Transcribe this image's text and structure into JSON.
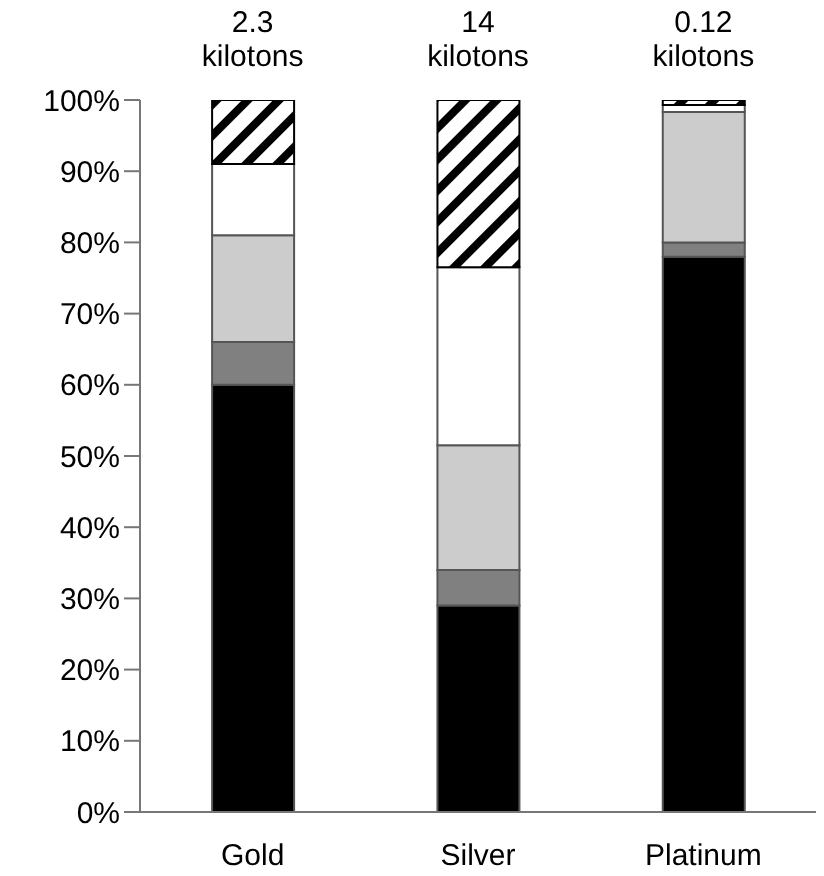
{
  "chart_data": {
    "type": "bar",
    "stacked": true,
    "categories": [
      "Gold",
      "Silver",
      "Platinum"
    ],
    "series": [
      {
        "color": "#000000",
        "values": [
          60,
          29,
          78
        ]
      },
      {
        "color": "#808080",
        "values": [
          6,
          5,
          2
        ]
      },
      {
        "color": "#cccccc",
        "values": [
          15,
          17.5,
          18.3
        ]
      },
      {
        "color": "#ffffff",
        "values": [
          10,
          25,
          1
        ]
      },
      {
        "color": "#000000",
        "values": [
          9,
          23.5,
          0.7
        ]
      }
    ],
    "ylim": [
      0,
      100
    ],
    "yticks": [
      {
        "value": 0,
        "label": "0%"
      },
      {
        "value": 10,
        "label": "10%"
      },
      {
        "value": 20,
        "label": "20%"
      },
      {
        "value": 30,
        "label": "30%"
      },
      {
        "value": 40,
        "label": "40%"
      },
      {
        "value": 50,
        "label": "50%"
      },
      {
        "value": 60,
        "label": "60%"
      },
      {
        "value": 70,
        "label": "70%"
      },
      {
        "value": 80,
        "label": "80%"
      },
      {
        "value": 90,
        "label": "90%"
      },
      {
        "value": 100,
        "label": "100%"
      }
    ],
    "annotations": [
      {
        "text": "2.3 kilotons",
        "x": "Gold",
        "y": 100
      },
      {
        "text": "14 kilotons",
        "x": "Silver",
        "y": 100
      },
      {
        "text": "0.12 kilotons",
        "x": "Platinum",
        "y": 100
      }
    ],
    "grid": false,
    "legend": false
  }
}
